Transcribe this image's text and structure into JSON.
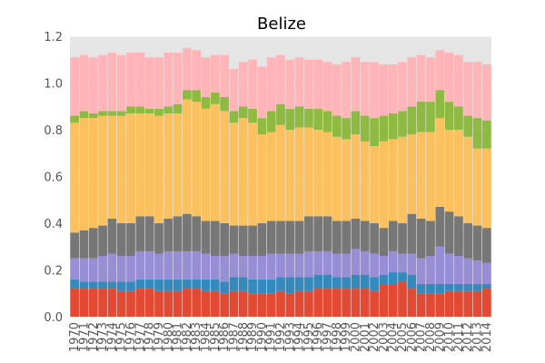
{
  "chart_data": {
    "type": "bar",
    "stacked": true,
    "title": "Belize",
    "xlabel": "",
    "ylabel": "",
    "ylim": [
      0,
      1.2
    ],
    "yticks": [
      0.0,
      0.2,
      0.4,
      0.6,
      0.8,
      1.0,
      1.2
    ],
    "ytick_labels": [
      "0.0",
      "0.2",
      "0.4",
      "0.6",
      "0.8",
      "1.0",
      "1.2"
    ],
    "grid": true,
    "background": "#e5e5e5",
    "categories": [
      "1970",
      "1971",
      "1972",
      "1973",
      "1974",
      "1975",
      "1976",
      "1977",
      "1978",
      "1979",
      "1980",
      "1981",
      "1982",
      "1983",
      "1984",
      "1985",
      "1986",
      "1987",
      "1988",
      "1989",
      "1990",
      "1991",
      "1992",
      "1993",
      "1994",
      "1995",
      "1996",
      "1997",
      "1998",
      "1999",
      "2000",
      "2001",
      "2002",
      "2003",
      "2004",
      "2005",
      "2006",
      "2007",
      "2008",
      "2009",
      "2010",
      "2011",
      "2012",
      "2013",
      "2014"
    ],
    "series": [
      {
        "color": "#e24a33",
        "values": [
          0.12,
          0.12,
          0.12,
          0.12,
          0.12,
          0.11,
          0.11,
          0.12,
          0.12,
          0.11,
          0.11,
          0.11,
          0.12,
          0.12,
          0.11,
          0.11,
          0.1,
          0.11,
          0.11,
          0.1,
          0.1,
          0.1,
          0.11,
          0.1,
          0.11,
          0.11,
          0.12,
          0.12,
          0.12,
          0.12,
          0.12,
          0.12,
          0.11,
          0.14,
          0.14,
          0.15,
          0.12,
          0.1,
          0.1,
          0.1,
          0.11,
          0.11,
          0.11,
          0.11,
          0.12
        ]
      },
      {
        "color": "#348abd",
        "values": [
          0.04,
          0.03,
          0.03,
          0.03,
          0.03,
          0.04,
          0.04,
          0.04,
          0.04,
          0.05,
          0.05,
          0.05,
          0.04,
          0.04,
          0.05,
          0.05,
          0.05,
          0.06,
          0.06,
          0.06,
          0.06,
          0.06,
          0.06,
          0.07,
          0.06,
          0.06,
          0.06,
          0.06,
          0.05,
          0.05,
          0.06,
          0.06,
          0.06,
          0.04,
          0.05,
          0.04,
          0.06,
          0.04,
          0.04,
          0.04,
          0.03,
          0.03,
          0.03,
          0.03,
          0.02
        ]
      },
      {
        "color": "#988ed5",
        "values": [
          0.09,
          0.1,
          0.1,
          0.11,
          0.12,
          0.11,
          0.11,
          0.12,
          0.12,
          0.11,
          0.12,
          0.12,
          0.12,
          0.12,
          0.11,
          0.1,
          0.11,
          0.1,
          0.09,
          0.1,
          0.1,
          0.11,
          0.1,
          0.1,
          0.1,
          0.11,
          0.1,
          0.1,
          0.1,
          0.1,
          0.11,
          0.1,
          0.1,
          0.08,
          0.09,
          0.08,
          0.09,
          0.11,
          0.12,
          0.16,
          0.13,
          0.12,
          0.11,
          0.1,
          0.09
        ]
      },
      {
        "color": "#777777",
        "values": [
          0.11,
          0.12,
          0.13,
          0.13,
          0.15,
          0.14,
          0.14,
          0.15,
          0.15,
          0.13,
          0.14,
          0.15,
          0.16,
          0.15,
          0.14,
          0.15,
          0.14,
          0.12,
          0.13,
          0.13,
          0.14,
          0.14,
          0.14,
          0.14,
          0.14,
          0.15,
          0.15,
          0.15,
          0.14,
          0.14,
          0.13,
          0.13,
          0.13,
          0.12,
          0.13,
          0.13,
          0.17,
          0.17,
          0.15,
          0.17,
          0.18,
          0.17,
          0.15,
          0.15,
          0.15
        ]
      },
      {
        "color": "#fbc15e",
        "values": [
          0.47,
          0.48,
          0.47,
          0.47,
          0.44,
          0.46,
          0.47,
          0.44,
          0.44,
          0.46,
          0.45,
          0.44,
          0.49,
          0.49,
          0.48,
          0.5,
          0.48,
          0.44,
          0.46,
          0.44,
          0.38,
          0.38,
          0.41,
          0.39,
          0.4,
          0.38,
          0.37,
          0.36,
          0.36,
          0.35,
          0.36,
          0.34,
          0.33,
          0.37,
          0.35,
          0.37,
          0.34,
          0.37,
          0.38,
          0.38,
          0.35,
          0.37,
          0.37,
          0.33,
          0.34
        ]
      },
      {
        "color": "#8eba42",
        "values": [
          0.03,
          0.03,
          0.02,
          0.02,
          0.02,
          0.02,
          0.03,
          0.03,
          0.02,
          0.03,
          0.03,
          0.04,
          0.04,
          0.05,
          0.05,
          0.05,
          0.06,
          0.05,
          0.05,
          0.06,
          0.07,
          0.09,
          0.09,
          0.09,
          0.09,
          0.08,
          0.09,
          0.09,
          0.09,
          0.09,
          0.1,
          0.11,
          0.12,
          0.11,
          0.11,
          0.11,
          0.12,
          0.13,
          0.13,
          0.12,
          0.12,
          0.1,
          0.09,
          0.13,
          0.12
        ]
      },
      {
        "color": "#ffb5b8",
        "values": [
          0.25,
          0.24,
          0.24,
          0.24,
          0.25,
          0.24,
          0.23,
          0.23,
          0.22,
          0.22,
          0.23,
          0.22,
          0.18,
          0.17,
          0.17,
          0.16,
          0.18,
          0.18,
          0.19,
          0.21,
          0.22,
          0.23,
          0.21,
          0.21,
          0.21,
          0.21,
          0.21,
          0.21,
          0.22,
          0.24,
          0.23,
          0.23,
          0.24,
          0.22,
          0.21,
          0.21,
          0.21,
          0.2,
          0.19,
          0.17,
          0.21,
          0.22,
          0.23,
          0.24,
          0.24
        ]
      }
    ]
  }
}
